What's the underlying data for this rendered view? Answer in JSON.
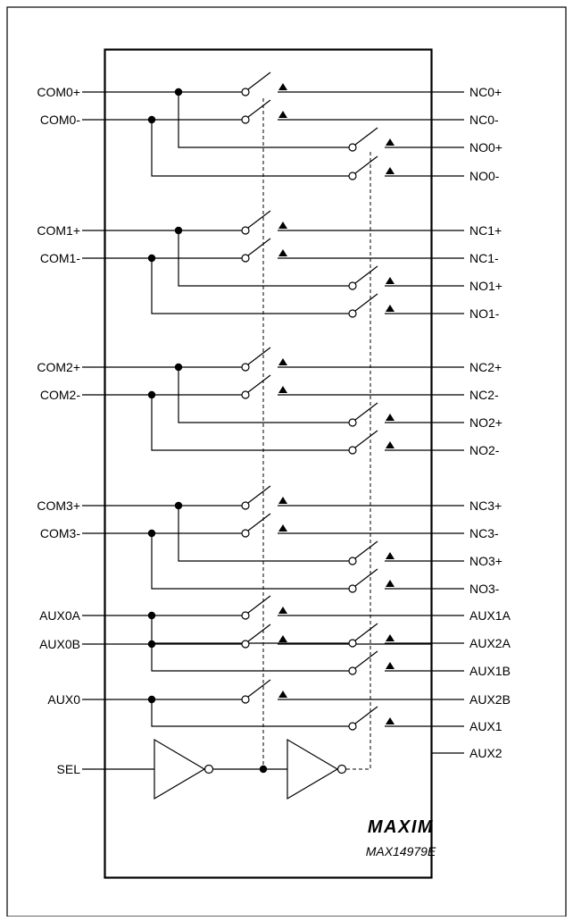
{
  "diagram": {
    "part_number": "MAX14979E",
    "logo_text": "MAXIM",
    "pins_left": [
      "COM0+",
      "COM0-",
      "COM1+",
      "COM1-",
      "COM2+",
      "COM2-",
      "COM3+",
      "COM3-",
      "AUX0A",
      "AUX0B",
      "AUX0",
      "SEL"
    ],
    "pins_right": [
      "NC0+",
      "NC0-",
      "NO0+",
      "NO0-",
      "NC1+",
      "NC1-",
      "NO1+",
      "NO1-",
      "NC2+",
      "NC2-",
      "NO2+",
      "NO2-",
      "NC3+",
      "NC3-",
      "NO3+",
      "NO3-",
      "AUX1A",
      "AUX2A",
      "AUX1B",
      "AUX2B",
      "AUX1",
      "AUX2"
    ],
    "colors": {
      "line": "#000000",
      "background": "#ffffff"
    }
  }
}
